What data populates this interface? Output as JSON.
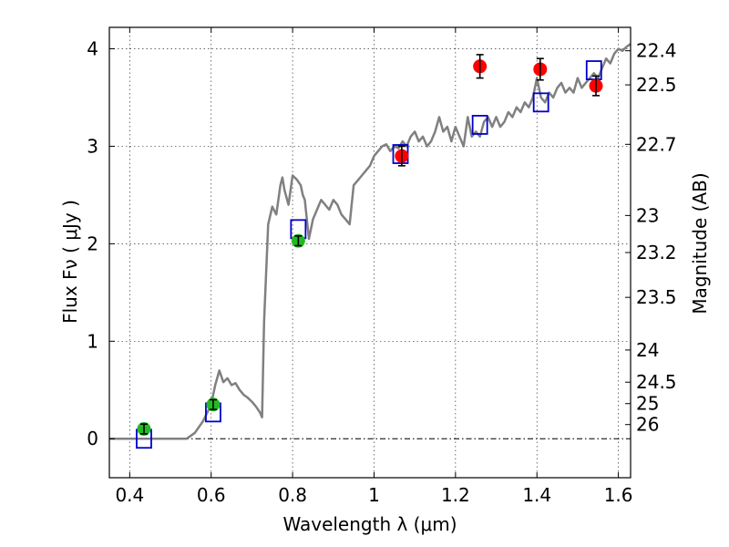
{
  "chart_data": {
    "type": "line",
    "title": "",
    "xlabel": "Wavelength  λ (μm)",
    "ylabel": "Flux  Fν  ( μJy )",
    "ylabel_right": "Magnitude (AB)",
    "xlim": [
      0.35,
      1.63
    ],
    "ylim": [
      -0.4,
      4.22
    ],
    "grid": true,
    "x_ticks": [
      0.4,
      0.6,
      0.8,
      1.0,
      1.2,
      1.4,
      1.6
    ],
    "x_tick_labels": [
      "0.4",
      "0.6",
      "0.8",
      "1",
      "1.2",
      "1.4",
      "1.6"
    ],
    "y_ticks": [
      0,
      1,
      2,
      3,
      4
    ],
    "y_tick_labels": [
      "0",
      "1",
      "2",
      "3",
      "4"
    ],
    "magnitude_ticks": [
      {
        "label": "22.4",
        "flux": 3.98
      },
      {
        "label": "22.5",
        "flux": 3.63
      },
      {
        "label": "22.7",
        "flux": 3.02
      },
      {
        "label": "23",
        "flux": 2.29
      },
      {
        "label": "23.2",
        "flux": 1.91
      },
      {
        "label": "23.5",
        "flux": 1.45
      },
      {
        "label": "24",
        "flux": 0.91
      },
      {
        "label": "24.5",
        "flux": 0.58
      },
      {
        "label": "25",
        "flux": 0.36
      },
      {
        "label": "26",
        "flux": 0.145
      }
    ],
    "series": [
      {
        "kind": "model-spectrum",
        "color": "#808080",
        "points": [
          [
            0.35,
            0.0
          ],
          [
            0.54,
            0.0
          ],
          [
            0.56,
            0.06
          ],
          [
            0.58,
            0.18
          ],
          [
            0.6,
            0.35
          ],
          [
            0.61,
            0.55
          ],
          [
            0.62,
            0.7
          ],
          [
            0.63,
            0.58
          ],
          [
            0.64,
            0.62
          ],
          [
            0.65,
            0.55
          ],
          [
            0.66,
            0.57
          ],
          [
            0.67,
            0.5
          ],
          [
            0.68,
            0.45
          ],
          [
            0.69,
            0.42
          ],
          [
            0.7,
            0.38
          ],
          [
            0.71,
            0.33
          ],
          [
            0.72,
            0.27
          ],
          [
            0.725,
            0.22
          ],
          [
            0.73,
            1.2
          ],
          [
            0.74,
            2.2
          ],
          [
            0.75,
            2.38
          ],
          [
            0.76,
            2.3
          ],
          [
            0.77,
            2.6
          ],
          [
            0.775,
            2.68
          ],
          [
            0.78,
            2.55
          ],
          [
            0.79,
            2.4
          ],
          [
            0.8,
            2.7
          ],
          [
            0.81,
            2.66
          ],
          [
            0.82,
            2.6
          ],
          [
            0.825,
            2.5
          ],
          [
            0.83,
            2.45
          ],
          [
            0.84,
            2.05
          ],
          [
            0.85,
            2.25
          ],
          [
            0.86,
            2.35
          ],
          [
            0.87,
            2.45
          ],
          [
            0.88,
            2.4
          ],
          [
            0.89,
            2.35
          ],
          [
            0.9,
            2.45
          ],
          [
            0.91,
            2.4
          ],
          [
            0.92,
            2.3
          ],
          [
            0.93,
            2.25
          ],
          [
            0.94,
            2.2
          ],
          [
            0.95,
            2.6
          ],
          [
            0.96,
            2.65
          ],
          [
            0.97,
            2.7
          ],
          [
            0.98,
            2.75
          ],
          [
            0.99,
            2.8
          ],
          [
            1.0,
            2.9
          ],
          [
            1.01,
            2.95
          ],
          [
            1.02,
            3.0
          ],
          [
            1.03,
            3.02
          ],
          [
            1.04,
            2.95
          ],
          [
            1.05,
            3.0
          ],
          [
            1.06,
            2.98
          ],
          [
            1.07,
            3.05
          ],
          [
            1.08,
            3.0
          ],
          [
            1.09,
            3.1
          ],
          [
            1.1,
            3.15
          ],
          [
            1.11,
            3.05
          ],
          [
            1.12,
            3.1
          ],
          [
            1.13,
            3.0
          ],
          [
            1.14,
            3.05
          ],
          [
            1.15,
            3.15
          ],
          [
            1.16,
            3.3
          ],
          [
            1.17,
            3.15
          ],
          [
            1.18,
            3.2
          ],
          [
            1.19,
            3.05
          ],
          [
            1.2,
            3.2
          ],
          [
            1.21,
            3.1
          ],
          [
            1.22,
            3.0
          ],
          [
            1.23,
            3.3
          ],
          [
            1.24,
            3.1
          ],
          [
            1.25,
            3.15
          ],
          [
            1.26,
            3.1
          ],
          [
            1.27,
            3.25
          ],
          [
            1.28,
            3.3
          ],
          [
            1.29,
            3.2
          ],
          [
            1.3,
            3.3
          ],
          [
            1.31,
            3.2
          ],
          [
            1.32,
            3.25
          ],
          [
            1.33,
            3.35
          ],
          [
            1.34,
            3.3
          ],
          [
            1.35,
            3.4
          ],
          [
            1.36,
            3.35
          ],
          [
            1.37,
            3.45
          ],
          [
            1.38,
            3.4
          ],
          [
            1.39,
            3.5
          ],
          [
            1.4,
            3.7
          ],
          [
            1.41,
            3.5
          ],
          [
            1.42,
            3.45
          ],
          [
            1.43,
            3.55
          ],
          [
            1.44,
            3.5
          ],
          [
            1.45,
            3.6
          ],
          [
            1.46,
            3.65
          ],
          [
            1.47,
            3.55
          ],
          [
            1.48,
            3.6
          ],
          [
            1.49,
            3.55
          ],
          [
            1.5,
            3.7
          ],
          [
            1.51,
            3.6
          ],
          [
            1.52,
            3.65
          ],
          [
            1.53,
            3.7
          ],
          [
            1.54,
            3.75
          ],
          [
            1.55,
            3.7
          ],
          [
            1.56,
            3.8
          ],
          [
            1.57,
            3.9
          ],
          [
            1.58,
            3.85
          ],
          [
            1.59,
            3.95
          ],
          [
            1.6,
            4.0
          ],
          [
            1.61,
            3.98
          ],
          [
            1.62,
            4.02
          ],
          [
            1.63,
            4.05
          ]
        ]
      },
      {
        "kind": "model-bandpass",
        "color": "#0000cc",
        "points": [
          [
            0.435,
            0.0
          ],
          [
            0.605,
            0.27
          ],
          [
            0.814,
            2.15
          ],
          [
            1.065,
            2.92
          ],
          [
            1.26,
            3.22
          ],
          [
            1.41,
            3.45
          ],
          [
            1.54,
            3.78
          ]
        ]
      },
      {
        "kind": "observed-detections-optical",
        "color": "#22bb22",
        "points": [
          [
            0.435,
            0.1,
            0.05
          ],
          [
            0.605,
            0.35,
            0.05
          ],
          [
            0.814,
            2.03,
            0.05
          ]
        ]
      },
      {
        "kind": "observed-detections-infrared",
        "color": "#ff0000",
        "points": [
          [
            1.068,
            2.9,
            0.1
          ],
          [
            1.26,
            3.82,
            0.12
          ],
          [
            1.408,
            3.79,
            0.11
          ],
          [
            1.545,
            3.62,
            0.1
          ]
        ]
      }
    ]
  }
}
